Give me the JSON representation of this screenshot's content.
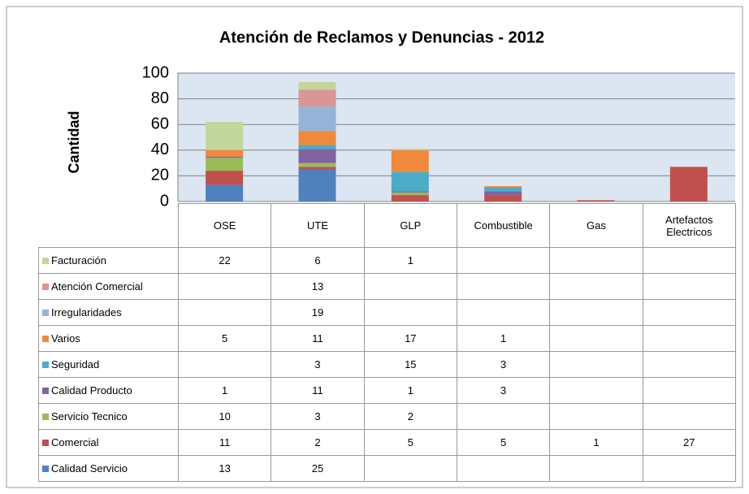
{
  "chart_data": {
    "type": "bar",
    "stacked": true,
    "title": "Atención de Reclamos y Denuncias  - 2012",
    "ylabel": "Cantidad",
    "categories": [
      "OSE",
      "UTE",
      "GLP",
      "Combustible",
      "Gas",
      "Artefactos Electricos"
    ],
    "ylim": [
      0,
      100
    ],
    "yticks": [
      0,
      20,
      40,
      60,
      80,
      100
    ],
    "grid": true,
    "data_table": true,
    "series": [
      {
        "name": "Facturación",
        "color": "#c3d69b",
        "values": [
          22,
          6,
          1,
          null,
          null,
          null
        ]
      },
      {
        "name": "Atención Comercial",
        "color": "#d99694",
        "values": [
          null,
          13,
          null,
          null,
          null,
          null
        ]
      },
      {
        "name": "Irregularidades",
        "color": "#95b3d7",
        "values": [
          null,
          19,
          null,
          null,
          null,
          null
        ]
      },
      {
        "name": "Varios",
        "color": "#f0893b",
        "values": [
          5,
          11,
          17,
          1,
          null,
          null
        ]
      },
      {
        "name": "Seguridad",
        "color": "#4bacc6",
        "values": [
          null,
          3,
          15,
          3,
          null,
          null
        ]
      },
      {
        "name": "Calidad Producto",
        "color": "#8064a2",
        "values": [
          1,
          11,
          1,
          3,
          null,
          null
        ]
      },
      {
        "name": "Servicio Tecnico",
        "color": "#9bbb59",
        "values": [
          10,
          3,
          2,
          null,
          null,
          null
        ]
      },
      {
        "name": "Comercial",
        "color": "#c0504d",
        "values": [
          11,
          2,
          5,
          5,
          1,
          27
        ]
      },
      {
        "name": "Calidad Servicio",
        "color": "#4f81bd",
        "values": [
          13,
          25,
          null,
          null,
          null,
          null
        ]
      }
    ]
  }
}
